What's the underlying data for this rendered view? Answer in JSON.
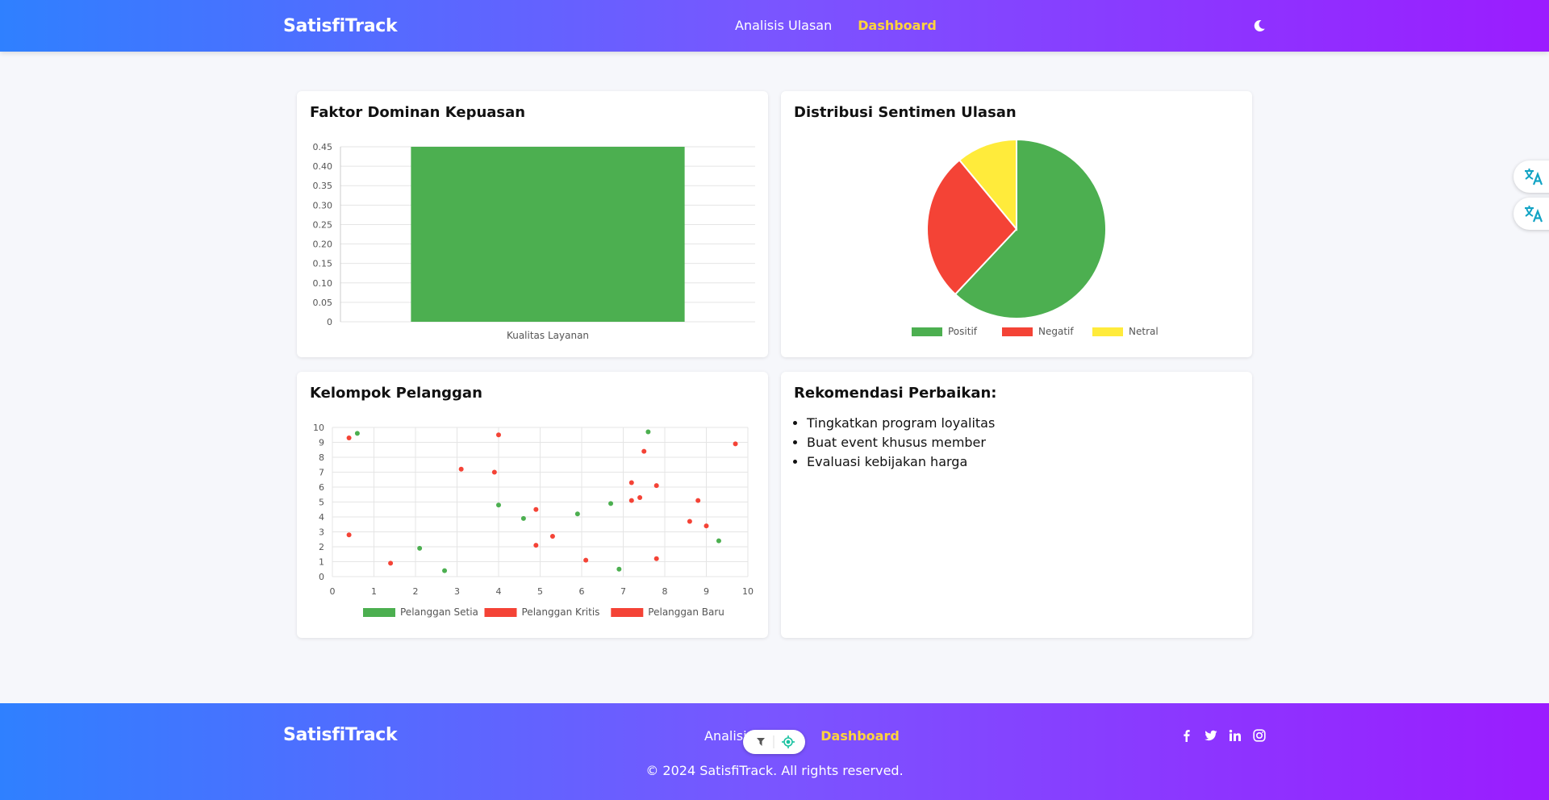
{
  "header": {
    "brand": "SatisfiTrack",
    "nav": [
      {
        "label": "Analisis Ulasan",
        "active": false
      },
      {
        "label": "Dashboard",
        "active": true
      }
    ],
    "theme_toggle_icon": "moon-icon"
  },
  "cards": {
    "bar_title": "Faktor Dominan Kepuasan",
    "pie_title": "Distribusi Sentimen Ulasan",
    "scatter_title": "Kelompok Pelanggan",
    "reco_title": "Rekomendasi Perbaikan:"
  },
  "recommendations": [
    "Tingkatkan program loyalitas",
    "Buat event khusus member",
    "Evaluasi kebijakan harga"
  ],
  "chart_data": [
    {
      "type": "bar",
      "title": "Faktor Dominan Kepuasan",
      "categories": [
        "Kualitas Layanan"
      ],
      "values": [
        0.45
      ],
      "ylim": [
        0,
        0.45
      ],
      "yticks": [
        "0",
        "0.05",
        "0.10",
        "0.15",
        "0.20",
        "0.25",
        "0.30",
        "0.35",
        "0.40",
        "0.45"
      ],
      "color": "#4caf50",
      "grid": true
    },
    {
      "type": "pie",
      "title": "Distribusi Sentimen Ulasan",
      "labels": [
        "Positif",
        "Negatif",
        "Netral"
      ],
      "values": [
        62,
        27,
        11
      ],
      "colors": [
        "#4caf50",
        "#f44336",
        "#ffeb3b"
      ],
      "legend": "bottom"
    },
    {
      "type": "scatter",
      "title": "Kelompok Pelanggan",
      "xlim": [
        0,
        10
      ],
      "ylim": [
        0,
        10
      ],
      "grid": true,
      "legend": "bottom",
      "series": [
        {
          "name": "Pelanggan Setia",
          "color": "#4caf50",
          "points": [
            [
              0.6,
              9.6
            ],
            [
              2.1,
              1.9
            ],
            [
              2.7,
              0.4
            ],
            [
              4.0,
              4.8
            ],
            [
              4.6,
              3.9
            ],
            [
              5.9,
              4.2
            ],
            [
              6.7,
              4.9
            ],
            [
              6.9,
              0.5
            ],
            [
              7.6,
              9.7
            ],
            [
              9.3,
              2.4
            ]
          ]
        },
        {
          "name": "Pelanggan Kritis",
          "color": "#f44336",
          "points": [
            [
              0.4,
              9.3
            ],
            [
              0.4,
              2.8
            ],
            [
              1.4,
              0.9
            ],
            [
              3.1,
              7.2
            ],
            [
              3.9,
              7.0
            ],
            [
              4.0,
              9.5
            ],
            [
              4.9,
              2.1
            ],
            [
              4.9,
              4.5
            ],
            [
              5.3,
              2.7
            ],
            [
              6.1,
              1.1
            ],
            [
              7.2,
              6.3
            ],
            [
              7.2,
              5.1
            ],
            [
              7.4,
              5.3
            ]
          ]
        },
        {
          "name": "Pelanggan Baru",
          "color": "#f44336",
          "points": [
            [
              7.5,
              8.4
            ],
            [
              7.8,
              6.1
            ],
            [
              7.8,
              1.2
            ],
            [
              8.6,
              3.7
            ],
            [
              8.8,
              5.1
            ],
            [
              9.0,
              3.4
            ],
            [
              9.7,
              8.9
            ]
          ]
        }
      ]
    }
  ],
  "side_buttons": [
    "translate-icon",
    "translate-icon"
  ],
  "footer": {
    "brand": "SatisfiTrack",
    "nav": [
      {
        "label": "Analisis Ulasan",
        "active": false
      },
      {
        "label": "Dashboard",
        "active": true
      }
    ],
    "copyright": "© 2024 SatisfiTrack. All rights reserved.",
    "social": [
      "facebook-icon",
      "twitter-icon",
      "linkedin-icon",
      "instagram-icon"
    ]
  }
}
